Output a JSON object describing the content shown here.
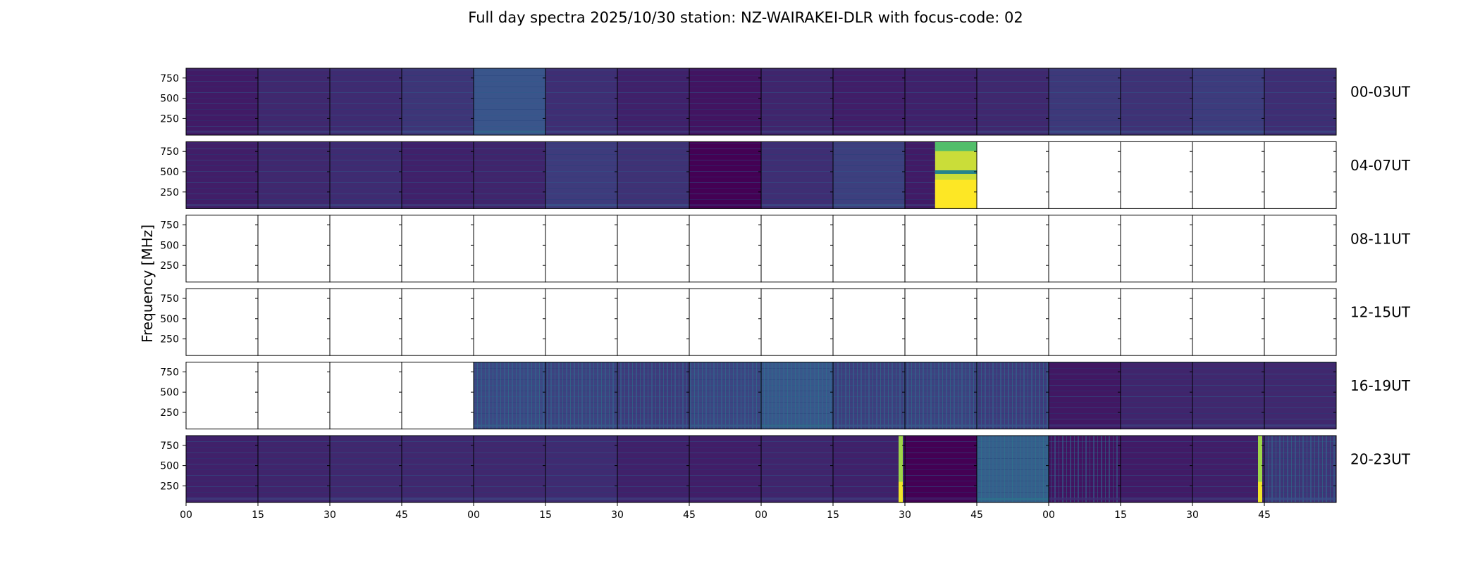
{
  "chart_data": {
    "type": "heatmap",
    "title": "Full day spectra 2025/10/30 station: NZ-WAIRAKEI-DLR with focus-code: 02",
    "ylabel": "Frequency [MHz]",
    "xlabel": "",
    "ylim": [
      45,
      870
    ],
    "y_ticks": [
      "750",
      "500",
      "250"
    ],
    "y_tick_values": [
      750,
      500,
      250
    ],
    "x_ticks": [
      "00",
      "15",
      "30",
      "45",
      "00",
      "15",
      "30",
      "45",
      "00",
      "15",
      "30",
      "45",
      "00",
      "15",
      "30",
      "45"
    ],
    "colormap": [
      "#440154",
      "#3b528b",
      "#21918c",
      "#5ec962",
      "#fde725"
    ],
    "segments_per_row": 16,
    "rows": [
      {
        "label": "00-03UT",
        "segments": [
          {
            "status": "data",
            "level": 0.08
          },
          {
            "status": "data",
            "level": 0.12
          },
          {
            "status": "data",
            "level": 0.13
          },
          {
            "status": "data",
            "level": 0.16
          },
          {
            "status": "data",
            "level": 0.26
          },
          {
            "status": "data",
            "level": 0.14
          },
          {
            "status": "data",
            "level": 0.1
          },
          {
            "status": "data",
            "level": 0.06
          },
          {
            "status": "data",
            "level": 0.11
          },
          {
            "status": "data",
            "level": 0.09
          },
          {
            "status": "data",
            "level": 0.1
          },
          {
            "status": "data",
            "level": 0.12
          },
          {
            "status": "data",
            "level": 0.17
          },
          {
            "status": "data",
            "level": 0.15
          },
          {
            "status": "data",
            "level": 0.18
          },
          {
            "status": "data",
            "level": 0.14
          }
        ]
      },
      {
        "label": "04-07UT",
        "segments": [
          {
            "status": "data",
            "level": 0.09
          },
          {
            "status": "data",
            "level": 0.12
          },
          {
            "status": "data",
            "level": 0.13
          },
          {
            "status": "data",
            "level": 0.1
          },
          {
            "status": "data",
            "level": 0.11
          },
          {
            "status": "data",
            "level": 0.18
          },
          {
            "status": "data",
            "level": 0.15
          },
          {
            "status": "data",
            "level": 0.0
          },
          {
            "status": "data",
            "level": 0.14
          },
          {
            "status": "data",
            "level": 0.19
          },
          {
            "status": "data",
            "level": 0.08,
            "burst": "partial-high"
          },
          {
            "status": "empty"
          },
          {
            "status": "empty"
          },
          {
            "status": "empty"
          },
          {
            "status": "empty"
          },
          {
            "status": "empty"
          }
        ]
      },
      {
        "label": "08-11UT",
        "segments": [
          {
            "status": "empty"
          },
          {
            "status": "empty"
          },
          {
            "status": "empty"
          },
          {
            "status": "empty"
          },
          {
            "status": "empty"
          },
          {
            "status": "empty"
          },
          {
            "status": "empty"
          },
          {
            "status": "empty"
          },
          {
            "status": "empty"
          },
          {
            "status": "empty"
          },
          {
            "status": "empty"
          },
          {
            "status": "empty"
          },
          {
            "status": "empty"
          },
          {
            "status": "empty"
          },
          {
            "status": "empty"
          },
          {
            "status": "empty"
          }
        ]
      },
      {
        "label": "12-15UT",
        "segments": [
          {
            "status": "empty"
          },
          {
            "status": "empty"
          },
          {
            "status": "empty"
          },
          {
            "status": "empty"
          },
          {
            "status": "empty"
          },
          {
            "status": "empty"
          },
          {
            "status": "empty"
          },
          {
            "status": "empty"
          },
          {
            "status": "empty"
          },
          {
            "status": "empty"
          },
          {
            "status": "empty"
          },
          {
            "status": "empty"
          },
          {
            "status": "empty"
          },
          {
            "status": "empty"
          },
          {
            "status": "empty"
          },
          {
            "status": "empty"
          }
        ]
      },
      {
        "label": "16-19UT",
        "segments": [
          {
            "status": "empty"
          },
          {
            "status": "empty"
          },
          {
            "status": "empty"
          },
          {
            "status": "empty"
          },
          {
            "status": "data",
            "level": 0.22,
            "striped": true
          },
          {
            "status": "data",
            "level": 0.2,
            "striped": true
          },
          {
            "status": "data",
            "level": 0.18,
            "striped": true
          },
          {
            "status": "data",
            "level": 0.21,
            "striped": true
          },
          {
            "status": "data",
            "level": 0.27,
            "striped": true
          },
          {
            "status": "data",
            "level": 0.19,
            "striped": true
          },
          {
            "status": "data",
            "level": 0.2,
            "striped": true
          },
          {
            "status": "data",
            "level": 0.18,
            "striped": true
          },
          {
            "status": "data",
            "level": 0.07
          },
          {
            "status": "data",
            "level": 0.11
          },
          {
            "status": "data",
            "level": 0.12
          },
          {
            "status": "data",
            "level": 0.12
          }
        ]
      },
      {
        "label": "20-23UT",
        "segments": [
          {
            "status": "data",
            "level": 0.1
          },
          {
            "status": "data",
            "level": 0.11
          },
          {
            "status": "data",
            "level": 0.12
          },
          {
            "status": "data",
            "level": 0.12
          },
          {
            "status": "data",
            "level": 0.12
          },
          {
            "status": "data",
            "level": 0.13
          },
          {
            "status": "data",
            "level": 0.1
          },
          {
            "status": "data",
            "level": 0.09
          },
          {
            "status": "data",
            "level": 0.11
          },
          {
            "status": "data",
            "level": 0.1,
            "burst": "edge-right"
          },
          {
            "status": "data",
            "level": 0.0
          },
          {
            "status": "data",
            "level": 0.3,
            "striped": true
          },
          {
            "status": "data",
            "level": 0.06,
            "striped": true
          },
          {
            "status": "data",
            "level": 0.08
          },
          {
            "status": "data",
            "level": 0.09,
            "burst": "edge-right"
          },
          {
            "status": "data",
            "level": 0.16,
            "striped": true
          }
        ]
      }
    ]
  }
}
